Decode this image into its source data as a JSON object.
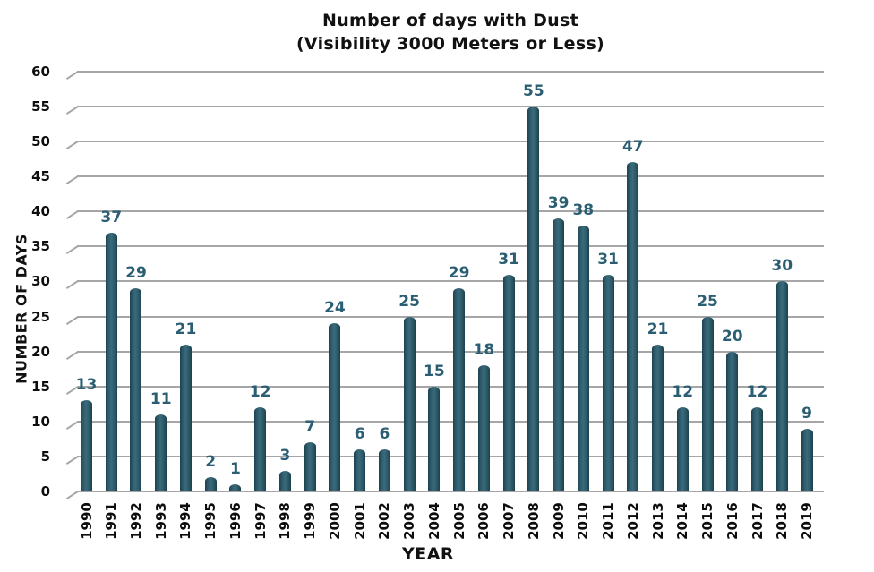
{
  "title": {
    "line1": "Number of days with Dust",
    "line2": "(Visibility 3000 Meters or Less)"
  },
  "chart_data": {
    "type": "bar",
    "title": "Number of days with Dust (Visibility 3000 Meters or Less)",
    "categories": [
      "1990",
      "1991",
      "1992",
      "1993",
      "1994",
      "1995",
      "1996",
      "1997",
      "1998",
      "1999",
      "2000",
      "2001",
      "2002",
      "2003",
      "2004",
      "2005",
      "2006",
      "2007",
      "2008",
      "2009",
      "2010",
      "2011",
      "2012",
      "2013",
      "2014",
      "2015",
      "2016",
      "2017",
      "2018",
      "2019"
    ],
    "values": [
      13,
      37,
      29,
      11,
      21,
      2,
      1,
      12,
      3,
      7,
      24,
      6,
      6,
      25,
      15,
      29,
      18,
      31,
      55,
      39,
      38,
      31,
      47,
      21,
      12,
      25,
      20,
      12,
      30,
      9
    ],
    "xlabel": "YEAR",
    "ylabel": "NUMBER OF DAYS",
    "ylim": [
      0,
      60
    ],
    "ytick_step": 5,
    "yticks": [
      0,
      5,
      10,
      15,
      20,
      25,
      30,
      35,
      40,
      45,
      50,
      55,
      60
    ],
    "grid": true,
    "legend_position": "none",
    "colors": {
      "bar": "#2E5B69",
      "bar_edge": "#1B414E",
      "value_label": "#2B5E73",
      "gridline": "#A6A6A6",
      "axis_text": "#0d0d0d",
      "background": "#FFFFFF"
    }
  }
}
